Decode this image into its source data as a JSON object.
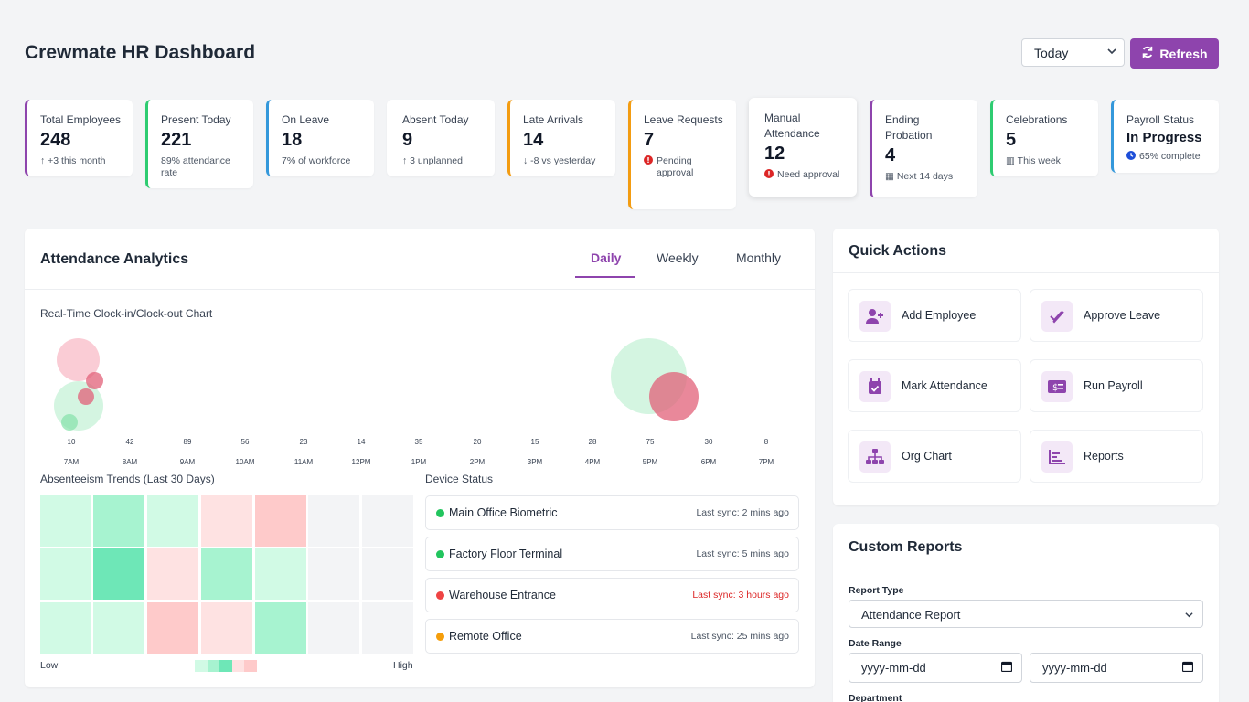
{
  "header": {
    "title": "Crewmate HR Dashboard",
    "period_selected": "Today",
    "refresh_label": "Refresh"
  },
  "stats": [
    {
      "label": "Total Employees",
      "value": "248",
      "sub": "+3 this month",
      "tone": "g",
      "color": "#8e44ad"
    },
    {
      "label": "Present Today",
      "value": "221",
      "sub": "89% attendance rate",
      "tone": "",
      "color": "#2ecc71"
    },
    {
      "label": "On Leave",
      "value": "18",
      "sub": "7% of workforce",
      "tone": "",
      "color": "#3498db"
    },
    {
      "label": "Absent Today",
      "value": "9",
      "sub": "3 unplanned",
      "tone": "r",
      "color": "#ffffff"
    },
    {
      "label": "Late Arrivals",
      "value": "14",
      "sub": "-8 vs yesterday",
      "tone": "",
      "color": "#f39c12"
    },
    {
      "label": "Leave Requests",
      "value": "7",
      "sub": "Pending approval",
      "tone": "r",
      "color": "#f39c12"
    },
    {
      "label": "Manual Attendance",
      "value": "12",
      "sub": "Need approval",
      "tone": "r",
      "color": "#ffffff"
    },
    {
      "label": "Ending Probation",
      "value": "4",
      "sub": "Next 14 days",
      "tone": "p",
      "color": "#8e44ad"
    },
    {
      "label": "Celebrations",
      "value": "5",
      "sub": "This week",
      "tone": "g",
      "color": "#2ecc71"
    },
    {
      "label": "Payroll Status",
      "value": "In Progress",
      "sub": "65% complete",
      "tone": "b",
      "color": "#3498db"
    }
  ],
  "analytics": {
    "title": "Attendance Analytics",
    "tabs": [
      "Daily",
      "Weekly",
      "Monthly"
    ],
    "active_tab": "Daily",
    "chart_title": "Real-Time Clock-in/Clock-out Chart",
    "times": [
      "7AM",
      "8AM",
      "9AM",
      "10AM",
      "11AM",
      "12PM",
      "1PM",
      "2PM",
      "3PM",
      "4PM",
      "5PM",
      "6PM",
      "7PM"
    ],
    "counts": [
      "10",
      "42",
      "89",
      "56",
      "23",
      "14",
      "35",
      "20",
      "15",
      "28",
      "75",
      "30",
      "8"
    ],
    "absenteeism_title": "Absenteeism Trends (Last 30 Days)",
    "legend_low": "Low",
    "legend_high": "High",
    "device_title": "Device Status",
    "devices": [
      {
        "name": "Main Office Biometric",
        "sync": "Last sync: 2 mins ago",
        "status": "#22c55e",
        "sync_color": "#4b5563"
      },
      {
        "name": "Factory Floor Terminal",
        "sync": "Last sync: 5 mins ago",
        "status": "#22c55e",
        "sync_color": "#4b5563"
      },
      {
        "name": "Warehouse Entrance",
        "sync": "Last sync: 3 hours ago",
        "status": "#ef4444",
        "sync_color": "#dc2626"
      },
      {
        "name": "Remote Office",
        "sync": "Last sync: 25 mins ago",
        "status": "#f59e0b",
        "sync_color": "#4b5563"
      }
    ]
  },
  "quick_actions": {
    "title": "Quick Actions",
    "items": [
      {
        "label": "Add Employee",
        "icon": "user-plus-icon"
      },
      {
        "label": "Approve Leave",
        "icon": "double-check-icon"
      },
      {
        "label": "Mark Attendance",
        "icon": "calendar-check-icon"
      },
      {
        "label": "Run Payroll",
        "icon": "money-icon"
      },
      {
        "label": "Org Chart",
        "icon": "sitemap-icon"
      },
      {
        "label": "Reports",
        "icon": "bar-chart-icon"
      }
    ]
  },
  "custom_reports": {
    "title": "Custom Reports",
    "report_type_label": "Report Type",
    "report_type_value": "Attendance Report",
    "date_range_label": "Date Range",
    "date_from_placeholder": "yyyy-mm-dd",
    "date_to_placeholder": "yyyy-mm-dd",
    "department_label": "Department"
  }
}
